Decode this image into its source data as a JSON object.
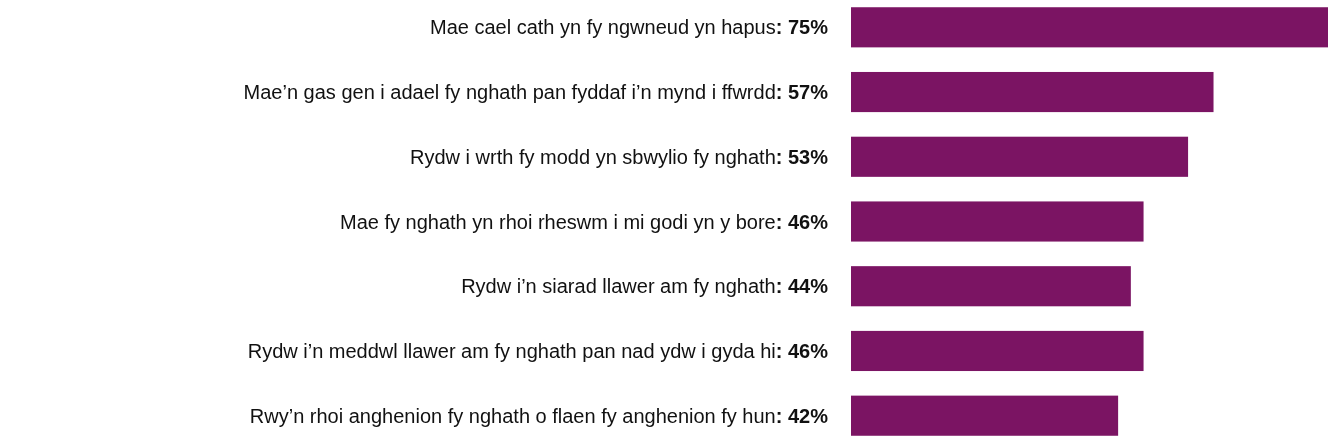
{
  "chart_data": {
    "type": "bar",
    "orientation": "horizontal",
    "categories": [
      "Mae cael cath yn fy ngwneud yn hapus",
      "Mae’n gas gen i adael fy nghath pan fyddaf i’n mynd i ffwrdd",
      "Rydw i wrth fy modd yn sbwylio fy nghath",
      "Mae fy nghath yn rhoi rheswm i mi godi yn y bore",
      "Rydw i’n siarad llawer am fy nghath",
      "Rydw i’n meddwl llawer am fy nghath pan nad ydw i gyda hi",
      "Rwy’n rhoi anghenion fy nghath o flaen fy anghenion fy hun"
    ],
    "values": [
      75,
      57,
      53,
      46,
      44,
      46,
      42
    ],
    "value_labels": [
      ": 75%",
      ": 57%",
      ": 53%",
      ": 46%",
      ": 44%",
      ": 46%",
      ": 42%"
    ],
    "color": "#7b1463"
  }
}
